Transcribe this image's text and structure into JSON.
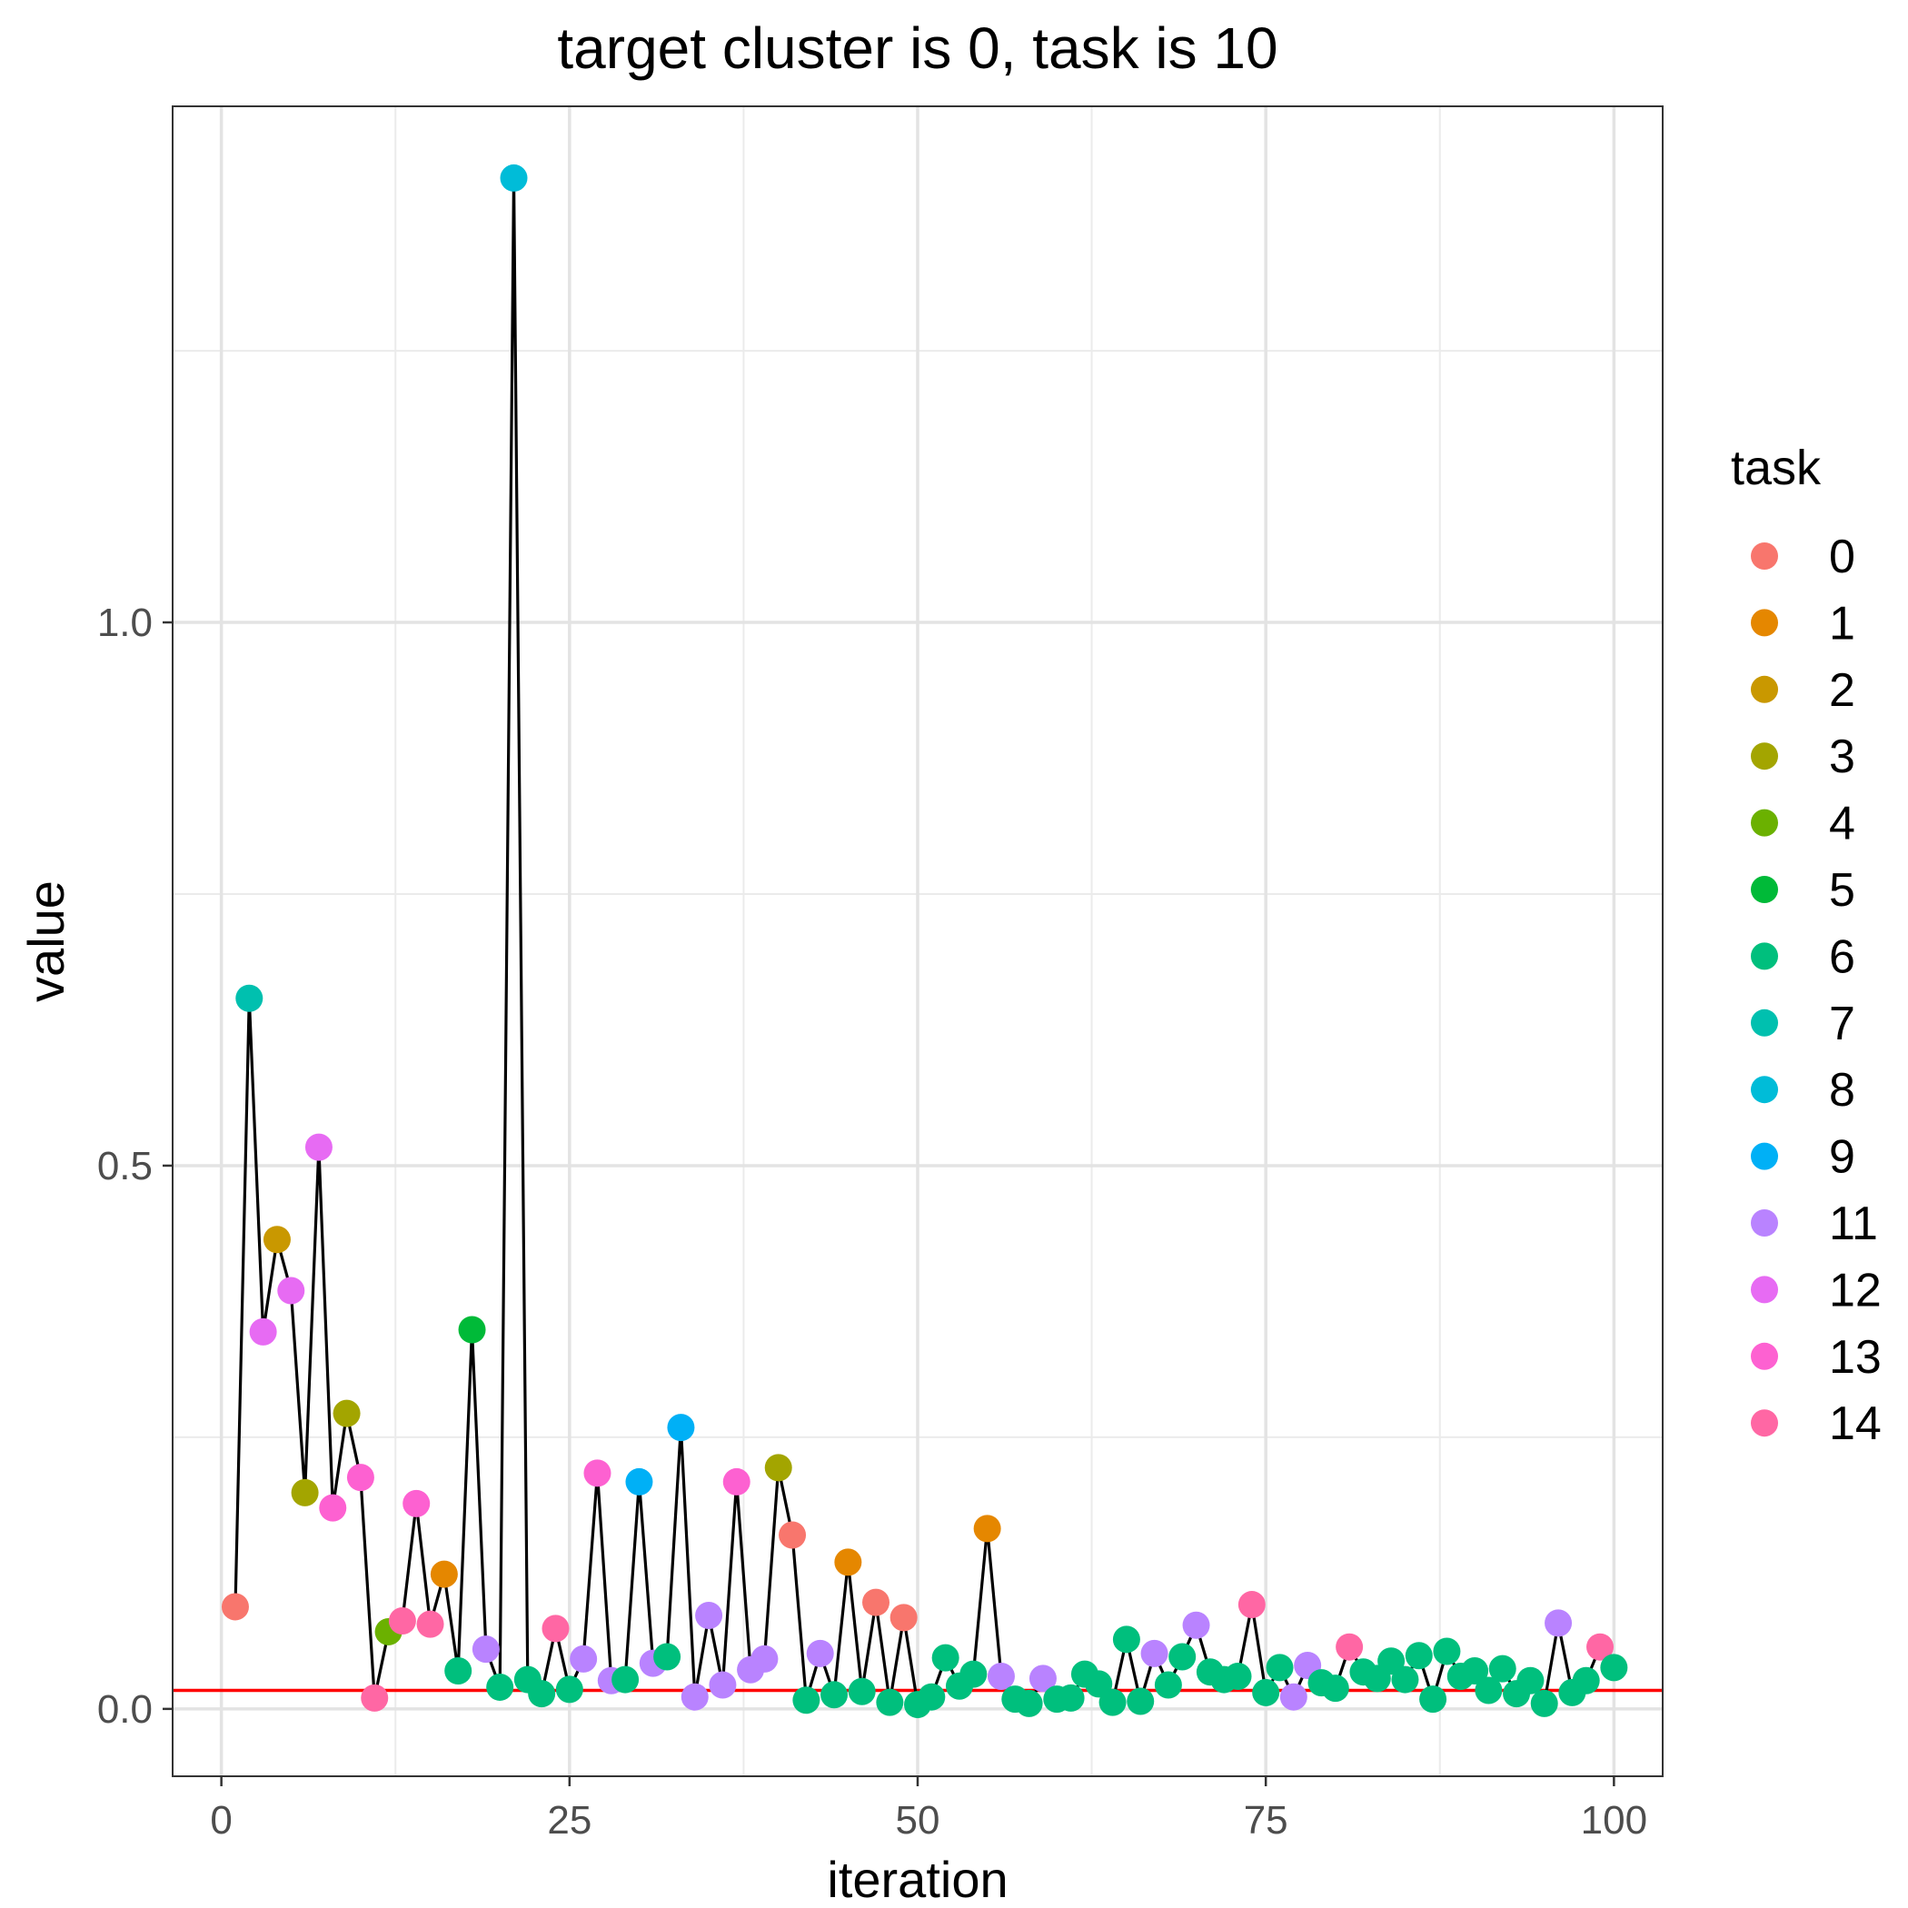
{
  "chart_data": {
    "type": "scatter",
    "title": "target cluster is 0, task is 10",
    "xlabel": "iteration",
    "ylabel": "value",
    "xlim": [
      -3.5,
      103.5
    ],
    "ylim": [
      -0.062,
      1.475
    ],
    "x_ticks": [
      0,
      25,
      50,
      75,
      100
    ],
    "x_tick_labels": [
      "0",
      "25",
      "50",
      "75",
      "100"
    ],
    "y_ticks": [
      0.0,
      0.5,
      1.0
    ],
    "y_tick_labels": [
      "0.0",
      "0.5",
      "1.0"
    ],
    "grid": true,
    "line_color": "#000000",
    "hline": {
      "y": 0.017,
      "color": "#ff0000"
    },
    "legend": {
      "title": "task",
      "position": "right",
      "items": [
        {
          "label": "0",
          "color": "#F8766D"
        },
        {
          "label": "1",
          "color": "#E58700"
        },
        {
          "label": "2",
          "color": "#C99800"
        },
        {
          "label": "3",
          "color": "#A3A500"
        },
        {
          "label": "4",
          "color": "#6BB100"
        },
        {
          "label": "5",
          "color": "#00BA38"
        },
        {
          "label": "6",
          "color": "#00BF7D"
        },
        {
          "label": "7",
          "color": "#00C0AF"
        },
        {
          "label": "8",
          "color": "#00BCD8"
        },
        {
          "label": "9",
          "color": "#00B0F6"
        },
        {
          "label": "11",
          "color": "#B983FF"
        },
        {
          "label": "12",
          "color": "#E76BF3"
        },
        {
          "label": "13",
          "color": "#FD61D1"
        },
        {
          "label": "14",
          "color": "#FF67A4"
        }
      ]
    },
    "points": [
      [
        1,
        0.094,
        "0"
      ],
      [
        2,
        0.654,
        "7"
      ],
      [
        3,
        0.347,
        "12"
      ],
      [
        4,
        0.432,
        "2"
      ],
      [
        5,
        0.385,
        "12"
      ],
      [
        6,
        0.199,
        "3"
      ],
      [
        7,
        0.517,
        "12"
      ],
      [
        8,
        0.185,
        "13"
      ],
      [
        9,
        0.272,
        "3"
      ],
      [
        10,
        0.213,
        "13"
      ],
      [
        11,
        0.01,
        "14"
      ],
      [
        12,
        0.071,
        "4"
      ],
      [
        13,
        0.081,
        "14"
      ],
      [
        14,
        0.189,
        "13"
      ],
      [
        15,
        0.078,
        "14"
      ],
      [
        16,
        0.124,
        "1"
      ],
      [
        17,
        0.035,
        "6"
      ],
      [
        18,
        0.349,
        "5"
      ],
      [
        19,
        0.055,
        "11"
      ],
      [
        20,
        0.02,
        "6"
      ],
      [
        21,
        1.409,
        "8"
      ],
      [
        22,
        0.027,
        "6"
      ],
      [
        23,
        0.014,
        "6"
      ],
      [
        24,
        0.074,
        "14"
      ],
      [
        25,
        0.018,
        "6"
      ],
      [
        26,
        0.046,
        "11"
      ],
      [
        27,
        0.217,
        "13"
      ],
      [
        28,
        0.026,
        "11"
      ],
      [
        29,
        0.027,
        "6"
      ],
      [
        30,
        0.209,
        "9"
      ],
      [
        31,
        0.042,
        "11"
      ],
      [
        32,
        0.048,
        "6"
      ],
      [
        33,
        0.259,
        "9"
      ],
      [
        34,
        0.011,
        "11"
      ],
      [
        35,
        0.086,
        "11"
      ],
      [
        36,
        0.022,
        "11"
      ],
      [
        37,
        0.209,
        "13"
      ],
      [
        38,
        0.036,
        "11"
      ],
      [
        39,
        0.046,
        "11"
      ],
      [
        40,
        0.222,
        "3"
      ],
      [
        41,
        0.16,
        "0"
      ],
      [
        42,
        0.008,
        "6"
      ],
      [
        43,
        0.051,
        "11"
      ],
      [
        44,
        0.013,
        "6"
      ],
      [
        45,
        0.135,
        "1"
      ],
      [
        46,
        0.016,
        "6"
      ],
      [
        47,
        0.098,
        "0"
      ],
      [
        48,
        0.006,
        "6"
      ],
      [
        49,
        0.084,
        "0"
      ],
      [
        50,
        0.004,
        "6"
      ],
      [
        51,
        0.011,
        "6"
      ],
      [
        52,
        0.047,
        "6"
      ],
      [
        53,
        0.021,
        "6"
      ],
      [
        54,
        0.032,
        "6"
      ],
      [
        55,
        0.166,
        "1"
      ],
      [
        56,
        0.03,
        "11"
      ],
      [
        57,
        0.009,
        "6"
      ],
      [
        58,
        0.005,
        "6"
      ],
      [
        59,
        0.028,
        "11"
      ],
      [
        60,
        0.009,
        "6"
      ],
      [
        61,
        0.01,
        "6"
      ],
      [
        62,
        0.032,
        "6"
      ],
      [
        63,
        0.023,
        "6"
      ],
      [
        64,
        0.006,
        "6"
      ],
      [
        65,
        0.064,
        "6"
      ],
      [
        66,
        0.007,
        "6"
      ],
      [
        67,
        0.051,
        "11"
      ],
      [
        68,
        0.022,
        "6"
      ],
      [
        69,
        0.048,
        "6"
      ],
      [
        70,
        0.077,
        "11"
      ],
      [
        71,
        0.034,
        "6"
      ],
      [
        72,
        0.027,
        "6"
      ],
      [
        73,
        0.03,
        "6"
      ],
      [
        74,
        0.096,
        "14"
      ],
      [
        75,
        0.015,
        "6"
      ],
      [
        76,
        0.038,
        "6"
      ],
      [
        77,
        0.011,
        "11"
      ],
      [
        78,
        0.04,
        "11"
      ],
      [
        79,
        0.024,
        "6"
      ],
      [
        80,
        0.019,
        "6"
      ],
      [
        81,
        0.057,
        "14"
      ],
      [
        82,
        0.034,
        "6"
      ],
      [
        83,
        0.028,
        "6"
      ],
      [
        84,
        0.044,
        "6"
      ],
      [
        85,
        0.027,
        "6"
      ],
      [
        86,
        0.049,
        "6"
      ],
      [
        87,
        0.009,
        "6"
      ],
      [
        88,
        0.053,
        "6"
      ],
      [
        89,
        0.03,
        "6"
      ],
      [
        90,
        0.035,
        "6"
      ],
      [
        91,
        0.017,
        "6"
      ],
      [
        92,
        0.037,
        "6"
      ],
      [
        93,
        0.014,
        "6"
      ],
      [
        94,
        0.026,
        "6"
      ],
      [
        95,
        0.005,
        "6"
      ],
      [
        96,
        0.079,
        "11"
      ],
      [
        97,
        0.015,
        "6"
      ],
      [
        98,
        0.026,
        "6"
      ],
      [
        99,
        0.057,
        "14"
      ],
      [
        100,
        0.038,
        "6"
      ]
    ]
  }
}
